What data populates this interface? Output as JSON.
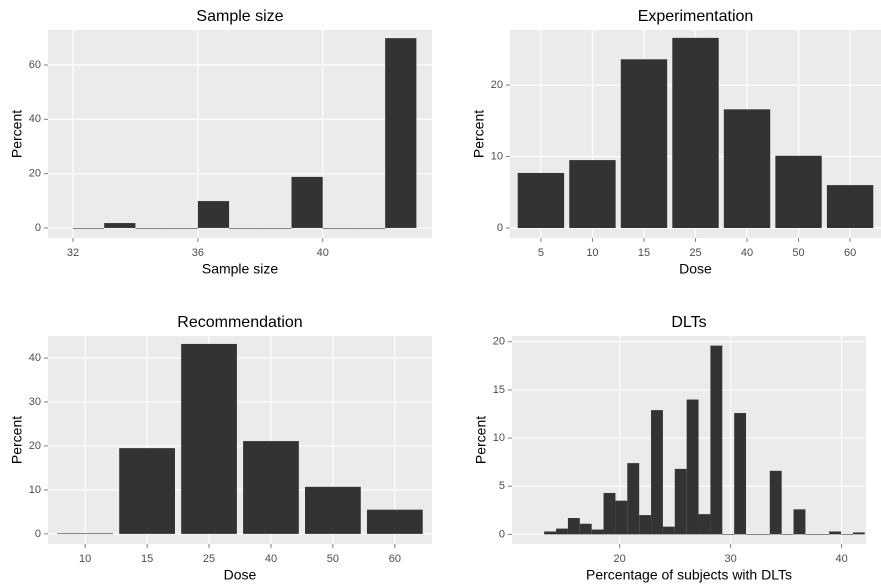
{
  "chart_data": [
    {
      "type": "histogram",
      "title": "Sample size",
      "xlabel": "Sample size",
      "ylabel": "Percent",
      "bins": [
        32,
        33,
        34,
        35,
        36,
        37,
        38,
        39,
        40,
        41,
        42,
        43
      ],
      "values": [
        0,
        1.8,
        0,
        0,
        9.9,
        0,
        0,
        18.8,
        0,
        0,
        69.9
      ],
      "color": "#333333",
      "xlim": [
        31.2,
        43.5
      ],
      "xticks": [
        32,
        36,
        40
      ],
      "ylim": [
        -3.7,
        72.9
      ],
      "yticks": [
        0,
        20,
        40,
        60
      ],
      "grid": true
    },
    {
      "type": "bar",
      "title": "Experimentation",
      "xlabel": "Dose",
      "ylabel": "Percent",
      "categories": [
        "5",
        "10",
        "15",
        "25",
        "40",
        "50",
        "60"
      ],
      "values": [
        7.7,
        9.5,
        23.6,
        26.6,
        16.6,
        10.1,
        6.0
      ],
      "color": "#333333",
      "ylim": [
        -1.4,
        27.7
      ],
      "yticks": [
        0,
        10,
        20
      ],
      "grid": true
    },
    {
      "type": "bar",
      "title": "Recommendation",
      "xlabel": "Dose",
      "ylabel": "Percent",
      "categories": [
        "10",
        "15",
        "25",
        "40",
        "50",
        "60"
      ],
      "values": [
        0.1,
        19.5,
        43.2,
        21.1,
        10.7,
        5.5
      ],
      "color": "#333333",
      "ylim": [
        -2.3,
        45
      ],
      "yticks": [
        0,
        10,
        20,
        30,
        40
      ],
      "grid": true
    },
    {
      "type": "histogram",
      "title": "DLTs",
      "xlabel": "Percentage of subjects with DLTs",
      "ylabel": "Percent",
      "bins": [
        13.2,
        14.27,
        15.34,
        16.41,
        17.48,
        18.55,
        19.62,
        20.69,
        21.76,
        22.83,
        23.9,
        24.97,
        26.04,
        27.11,
        28.18,
        29.25,
        30.32,
        31.39,
        32.46,
        33.53,
        34.6,
        35.67,
        36.74,
        37.81,
        38.88,
        39.95,
        41.02,
        42.09
      ],
      "values": [
        0.3,
        0.6,
        1.7,
        1.1,
        0.5,
        4.3,
        3.5,
        7.4,
        2.0,
        12.9,
        0.8,
        6.8,
        14.0,
        2.1,
        19.6,
        0,
        12.6,
        0,
        0,
        6.6,
        0,
        2.6,
        0,
        0,
        0.3,
        0,
        0.2
      ],
      "color": "#333333",
      "xlim": [
        10.3,
        42.2
      ],
      "xticks": [
        20,
        30,
        40
      ],
      "ylim": [
        -1.0,
        20.6
      ],
      "yticks": [
        0,
        5,
        10,
        15,
        20
      ],
      "grid": true
    }
  ]
}
